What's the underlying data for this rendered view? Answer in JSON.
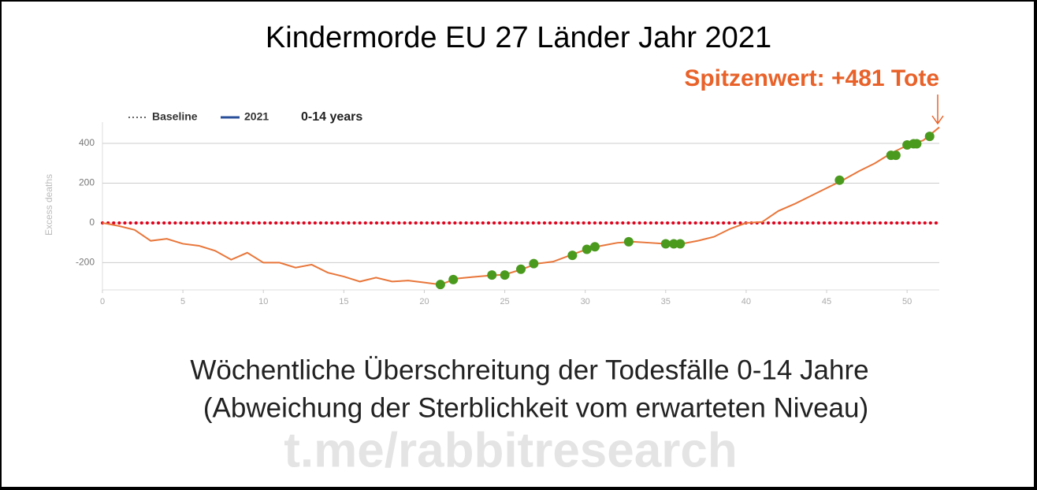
{
  "chart_data": {
    "type": "line",
    "title": "Kindermorde EU 27 Länder Jahr 2021",
    "annotation": "Spitzenwert: +481 Tote",
    "subtitle_lines": [
      "Wöchentliche Überschreitung der Todesfälle 0-14 Jahre",
      "(Abweichung der Sterblichkeit vom erwarteten Niveau)"
    ],
    "watermark": "t.me/rabbitresearch",
    "legend_title": "0-14 years",
    "ylabel": "Excess deaths",
    "xlim": [
      0,
      52
    ],
    "ylim": [
      -337,
      507
    ],
    "xticks": [
      0,
      5,
      10,
      15,
      20,
      25,
      30,
      35,
      40,
      45,
      50
    ],
    "yticks": [
      -200,
      0,
      200,
      400
    ],
    "grid": true,
    "series": [
      {
        "name": "Baseline",
        "color": "#e0001b",
        "legend_color": "#666666",
        "dashed": true,
        "x": [
          0,
          52
        ],
        "values": [
          0,
          0
        ]
      },
      {
        "name": "2021",
        "color": "#e8763a",
        "legend_color": "#2a4f9a",
        "dashed": false,
        "x": [
          0,
          1,
          2,
          3,
          4,
          5,
          6,
          7,
          8,
          9,
          10,
          11,
          12,
          13,
          14,
          15,
          16,
          17,
          18,
          19,
          20,
          21,
          22,
          23,
          24,
          25,
          26,
          27,
          28,
          29,
          30,
          31,
          32,
          33,
          34,
          35,
          36,
          37,
          38,
          39,
          40,
          41,
          42,
          43,
          44,
          45,
          46,
          47,
          48,
          49,
          50,
          51,
          52
        ],
        "values": [
          0,
          -15,
          -35,
          -90,
          -80,
          -105,
          -115,
          -140,
          -185,
          -150,
          -200,
          -200,
          -225,
          -210,
          -250,
          -270,
          -295,
          -275,
          -295,
          -290,
          -300,
          -310,
          -280,
          -272,
          -265,
          -260,
          -235,
          -205,
          -195,
          -165,
          -135,
          -115,
          -100,
          -95,
          -100,
          -105,
          -105,
          -90,
          -70,
          -30,
          0,
          5,
          60,
          95,
          135,
          175,
          215,
          260,
          300,
          350,
          390,
          415,
          481
        ]
      }
    ],
    "points": {
      "color": "#4a9a1e",
      "x": [
        21,
        21.8,
        24.2,
        25,
        26,
        26.8,
        29.2,
        30.1,
        30.6,
        32.7,
        35,
        35.5,
        35.9,
        45.8,
        49,
        49.3,
        50,
        50.4,
        50.6,
        51.4
      ],
      "values": [
        -310,
        -285,
        -262,
        -262,
        -233,
        -205,
        -163,
        -133,
        -120,
        -95,
        -105,
        -105,
        -105,
        215,
        340,
        340,
        392,
        398,
        398,
        435
      ]
    }
  }
}
